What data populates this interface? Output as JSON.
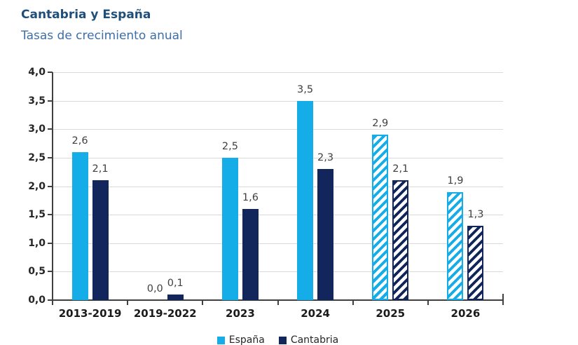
{
  "header": {
    "title": "Cantabria y España",
    "subtitle": "Tasas de crecimiento anual"
  },
  "chart_data": {
    "type": "bar",
    "title": "Cantabria y España",
    "subtitle": "Tasas de crecimiento anual",
    "categories": [
      "2013-2019",
      "2019-2022",
      "2023",
      "2024",
      "2025",
      "2026"
    ],
    "series": [
      {
        "name": "España",
        "color": "#15ADE8",
        "values": [
          2.6,
          0.0,
          2.5,
          3.5,
          2.9,
          1.9
        ],
        "labels": [
          "2,6",
          "0,0",
          "2,5",
          "3,5",
          "2,9",
          "1,9"
        ]
      },
      {
        "name": "Cantabria",
        "color": "#12265B",
        "values": [
          2.1,
          0.1,
          1.6,
          2.3,
          2.1,
          1.3
        ],
        "labels": [
          "2,1",
          "0,1",
          "1,6",
          "2,3",
          "2,1",
          "1,3"
        ]
      }
    ],
    "forecast_categories": [
      false,
      false,
      false,
      false,
      true,
      true
    ],
    "forecast_style": "diagonal-hatch",
    "ylim": [
      0.0,
      4.0
    ],
    "ytick_step": 0.5,
    "ytick_labels": [
      "0,0",
      "0,5",
      "1,0",
      "1,5",
      "2,0",
      "2,5",
      "3,0",
      "3,5",
      "4,0"
    ],
    "grid": true,
    "legend_position": "bottom",
    "colors": {
      "espana": "#15ADE8",
      "cantabria": "#12265B",
      "title": "#1F4E79",
      "subtitle": "#3E6EA8",
      "gridline": "#D9D9D9",
      "axis": "#404040",
      "data_label": "#404040",
      "tick_label": "#262626"
    }
  }
}
